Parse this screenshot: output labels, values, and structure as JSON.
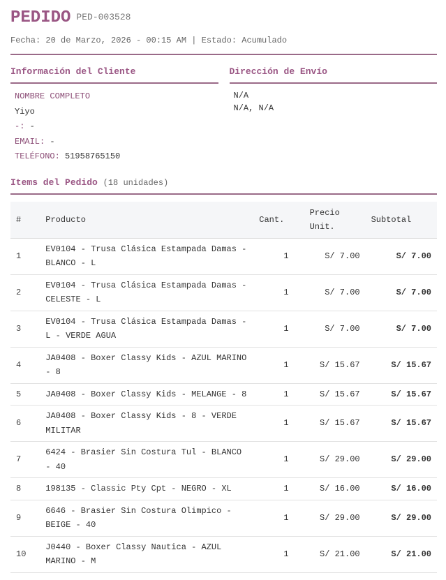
{
  "header": {
    "title": "PEDIDO",
    "code": "PED-003528",
    "meta": "Fecha: 20 de Marzo, 2026 - 00:15 AM | Estado: Acumulado"
  },
  "client": {
    "heading": "Información del Cliente",
    "name_label": "NOMBRE COMPLETO",
    "name": "Yiyo",
    "fields": [
      {
        "label": "-:",
        "value": "-"
      },
      {
        "label": "EMAIL:",
        "value": "-"
      },
      {
        "label": "TELÉFONO:",
        "value": "51958765150"
      }
    ]
  },
  "shipping": {
    "heading": "Dirección de Envío",
    "lines": [
      "N/A",
      "N/A, N/A"
    ]
  },
  "items": {
    "heading": "Items del Pedido",
    "count": "(18 unidades)",
    "columns": [
      "#",
      "Producto",
      "Cant.",
      "Precio Unit.",
      "Subtotal"
    ],
    "rows": [
      [
        "1",
        "EV0104 - Trusa Clásica Estampada Damas - BLANCO - L",
        "1",
        "S/ 7.00",
        "S/ 7.00"
      ],
      [
        "2",
        "EV0104 - Trusa Clásica Estampada Damas - CELESTE - L",
        "1",
        "S/ 7.00",
        "S/ 7.00"
      ],
      [
        "3",
        "EV0104 - Trusa Clásica Estampada Damas - L - VERDE AGUA",
        "1",
        "S/ 7.00",
        "S/ 7.00"
      ],
      [
        "4",
        "JA0408 - Boxer Classy Kids - AZUL MARINO - 8",
        "1",
        "S/ 15.67",
        "S/ 15.67"
      ],
      [
        "5",
        "JA0408 - Boxer Classy Kids - MELANGE - 8",
        "1",
        "S/ 15.67",
        "S/ 15.67"
      ],
      [
        "6",
        "JA0408 - Boxer Classy Kids - 8 - VERDE MILITAR",
        "1",
        "S/ 15.67",
        "S/ 15.67"
      ],
      [
        "7",
        "6424 - Brasier Sin Costura Tul - BLANCO - 40",
        "1",
        "S/ 29.00",
        "S/ 29.00"
      ],
      [
        "8",
        "198135 - Classic Pty Cpt - NEGRO - XL",
        "1",
        "S/ 16.00",
        "S/ 16.00"
      ],
      [
        "9",
        "6646 - Brasier Sin Costura Olimpico - BEIGE - 40",
        "1",
        "S/ 29.00",
        "S/ 29.00"
      ],
      [
        "10",
        "J0440 - Boxer Classy Nautica - AZUL MARINO - M",
        "1",
        "S/ 21.00",
        "S/ 21.00"
      ]
    ]
  }
}
